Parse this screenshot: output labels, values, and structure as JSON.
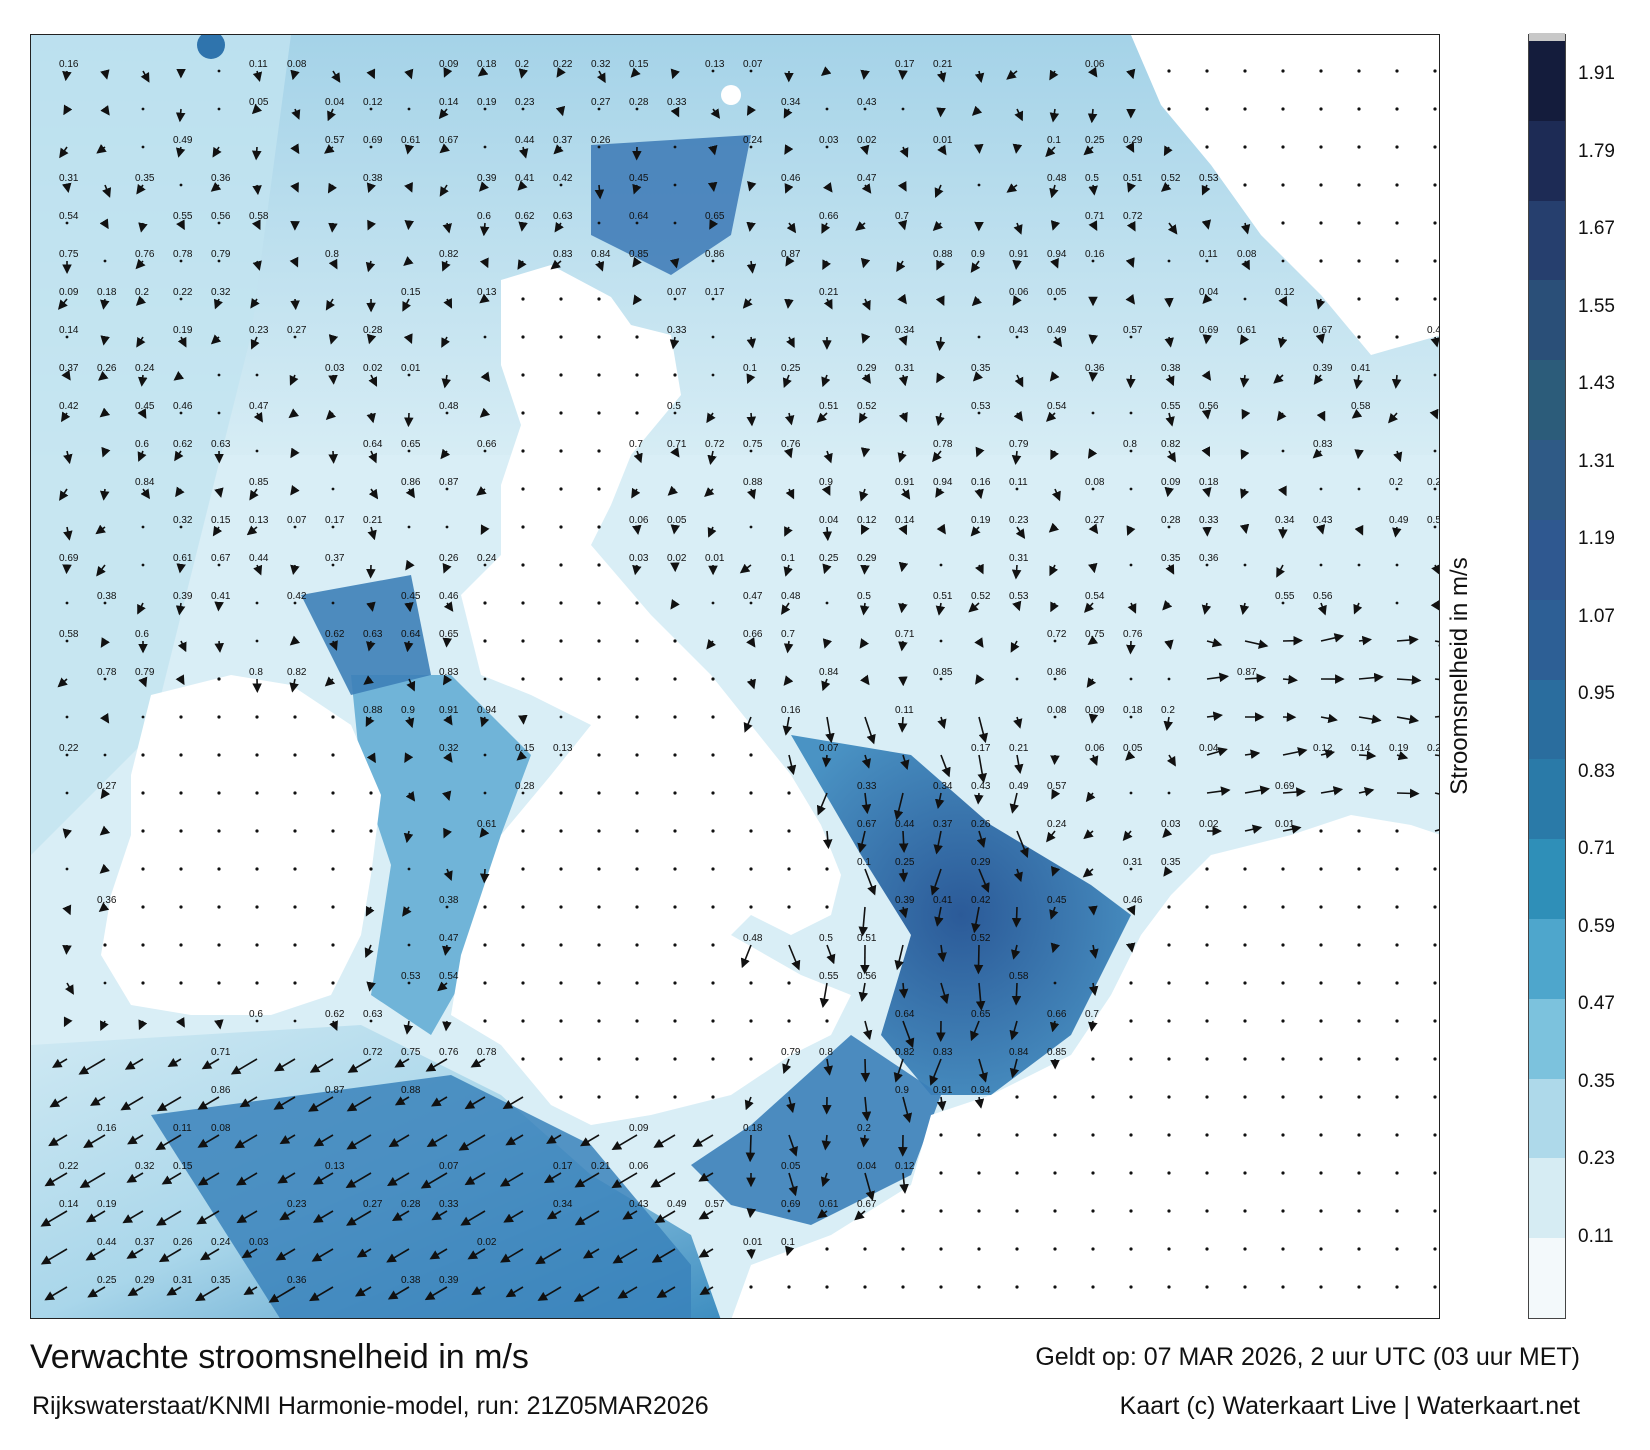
{
  "map": {
    "legend_title": "Stroomsnelheid in m/s",
    "legend_ticks": [
      "1.91",
      "1.79",
      "1.67",
      "1.55",
      "1.43",
      "1.31",
      "1.19",
      "1.07",
      "0.95",
      "0.83",
      "0.71",
      "0.59",
      "0.47",
      "0.35",
      "0.23",
      "0.11"
    ],
    "legend_colors": [
      "#f3f9fb",
      "#d6ecf3",
      "#aed9ea",
      "#7cc2dd",
      "#4ea6cc",
      "#2f8fb8",
      "#2a7aa8",
      "#2a6d9e",
      "#2d5f95",
      "#2f5890",
      "#2f5a86",
      "#2c5c7a",
      "#2a4f78",
      "#263f6e",
      "#1d2b55",
      "#141c3c",
      "#c8c8c8"
    ],
    "speed_labels": [
      "0.16",
      "0.11",
      "0.08",
      "0.09",
      "0.18",
      "0.2",
      "0.22",
      "0.32",
      "0.15",
      "0.13",
      "0.07",
      "0.17",
      "0.21",
      "0.06",
      "0.05",
      "0.04",
      "0.12",
      "0.14",
      "0.19",
      "0.23",
      "0.27",
      "0.28",
      "0.33",
      "0.34",
      "0.43",
      "0.49",
      "0.57",
      "0.69",
      "0.61",
      "0.67",
      "0.44",
      "0.37",
      "0.26",
      "0.24",
      "0.03",
      "0.02",
      "0.01",
      "0.1",
      "0.25",
      "0.29",
      "0.31",
      "0.35",
      "0.36",
      "0.38",
      "0.39",
      "0.41",
      "0.42",
      "0.45",
      "0.46",
      "0.47",
      "0.48",
      "0.5",
      "0.51",
      "0.52",
      "0.53",
      "0.54",
      "0.55",
      "0.56",
      "0.58",
      "0.6",
      "0.62",
      "0.63",
      "0.64",
      "0.65",
      "0.66",
      "0.7",
      "0.71",
      "0.72",
      "0.75",
      "0.76",
      "0.78",
      "0.79",
      "0.8",
      "0.82",
      "0.83",
      "0.84",
      "0.85",
      "0.86",
      "0.87",
      "0.88",
      "0.9",
      "0.91",
      "0.94"
    ],
    "footer": {
      "title": "Verwachte stroomsnelheid in m/s",
      "subtitle": "Rijkswaterstaat/KNMI Harmonie-model, run: 21Z05MAR2026",
      "valid_time": "Geldt op: 07 MAR 2026, 2 uur UTC (03 uur MET)",
      "credit": "Kaart (c) Waterkaart Live | Waterkaart.net"
    }
  }
}
